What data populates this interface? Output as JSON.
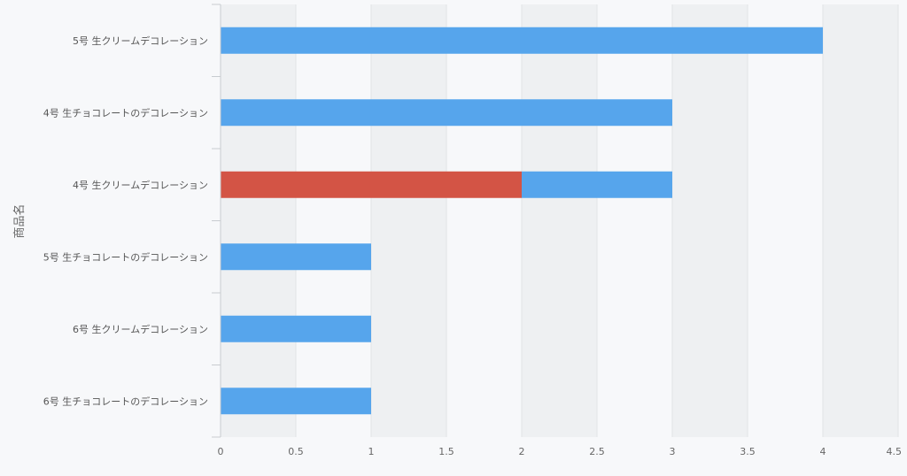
{
  "chart_data": {
    "type": "bar",
    "orientation": "horizontal",
    "stacked": true,
    "categories": [
      "5号 生クリームデコレーション",
      "4号 生チョコレートのデコレーション",
      "4号 生クリームデコレーション",
      "5号 生チョコレートのデコレーション",
      "6号 生クリームデコレーション",
      "6号 生チョコレートのデコレーション"
    ],
    "series": [
      {
        "color": "#d35445",
        "values": [
          0,
          0,
          2,
          0,
          0,
          0
        ]
      },
      {
        "color": "#56a5ec",
        "values": [
          4,
          3,
          1,
          1,
          1,
          1
        ]
      }
    ],
    "ylabel": "商品名",
    "xlim": [
      0,
      4.5
    ],
    "xticks": [
      "0",
      "0.5",
      "1",
      "1.5",
      "2",
      "2.5",
      "3",
      "3.5",
      "4",
      "4.5"
    ],
    "grid": "alternating vertical bands",
    "legend": "none"
  },
  "colors": {
    "background": "#f7f8fa",
    "band": "#eef0f2",
    "gridline": "#e2e4e7",
    "axis": "#c8ccd0"
  }
}
